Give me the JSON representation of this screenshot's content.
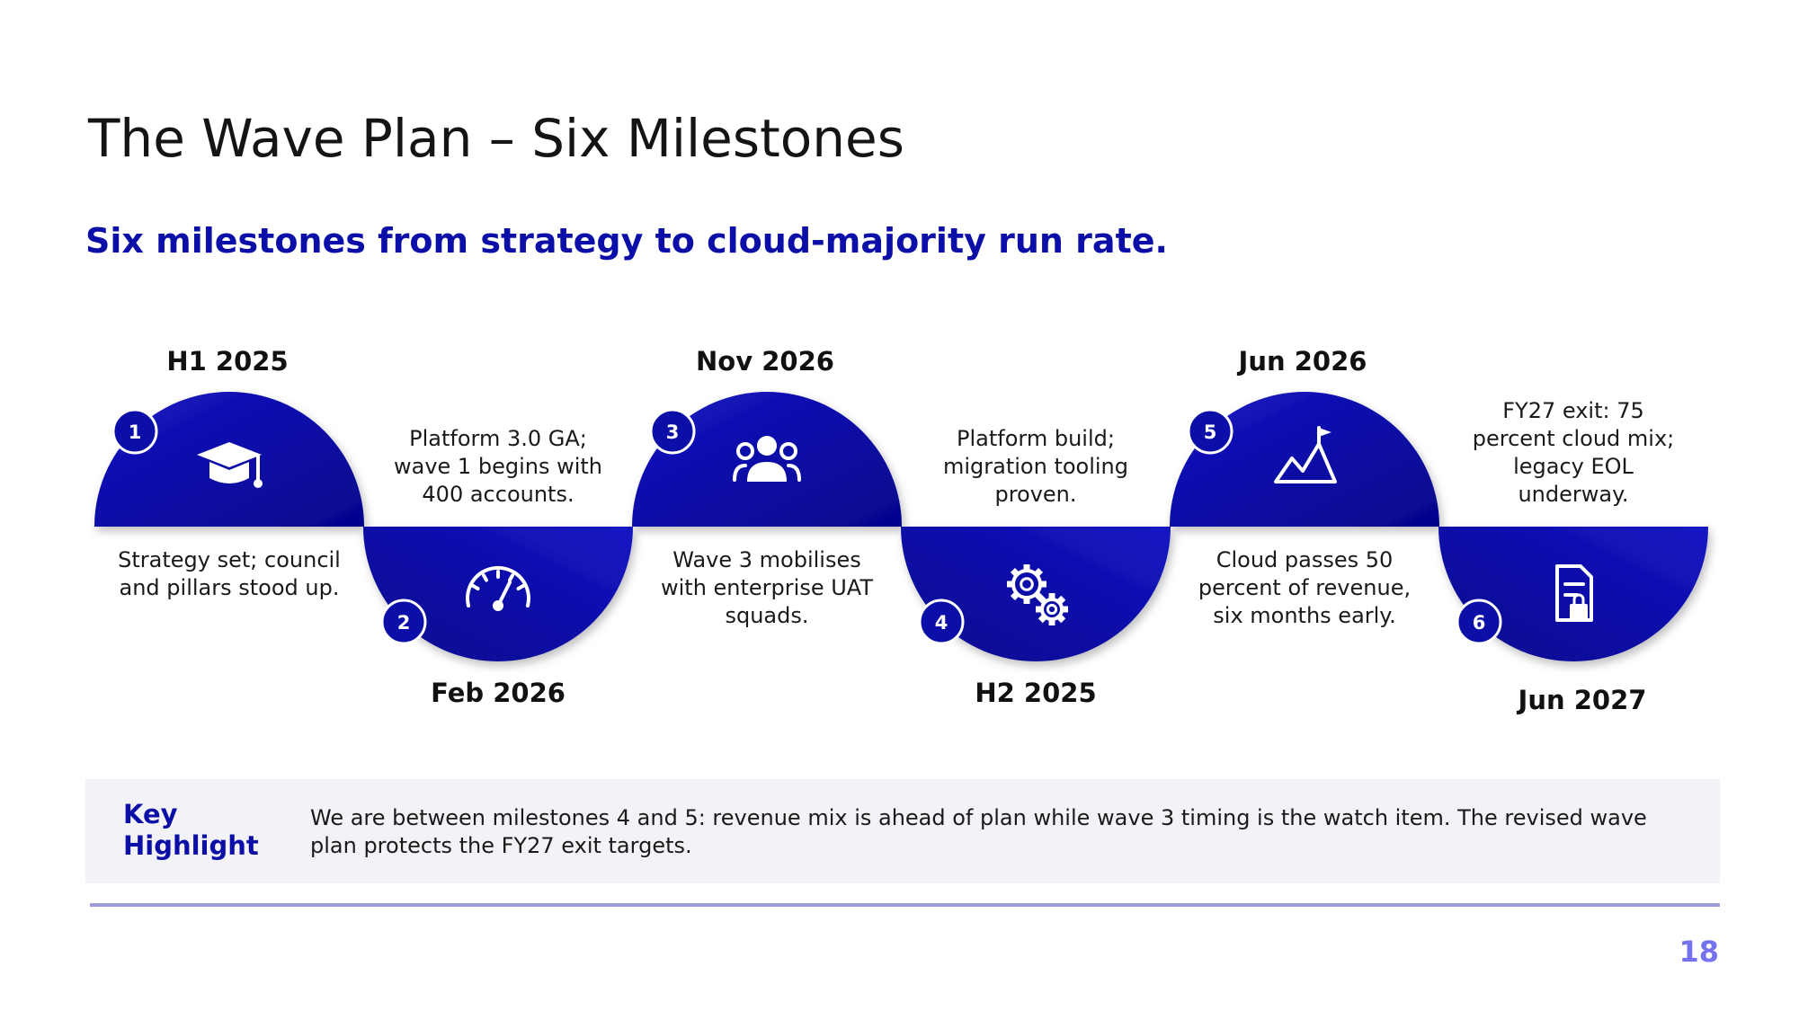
{
  "slide": {
    "title": "The Wave Plan – Six Milestones",
    "subtitle": "Six milestones from strategy to cloud-majority run rate.",
    "page_number": "18"
  },
  "colors": {
    "accent": "#0b0fa8",
    "accent_dark": "#05058c",
    "accent_light": "#1616c4",
    "highlight_bg": "#f3f2f6",
    "rule": "#9f9bd6",
    "page_number": "#7472ee"
  },
  "milestones": [
    {
      "number": "1",
      "date": "H1 2025",
      "caption": [
        "Strategy set; council",
        "and pillars stood up."
      ],
      "icon": "graduation-cap-icon",
      "orientation": "up"
    },
    {
      "number": "2",
      "date": "Feb 2026",
      "caption": [
        "Platform 3.0 GA;",
        "wave 1 begins with",
        "400 accounts."
      ],
      "icon": "speedometer-icon",
      "orientation": "down"
    },
    {
      "number": "3",
      "date": "Nov 2026",
      "caption": [
        "Wave 3 mobilises",
        "with enterprise UAT",
        "squads."
      ],
      "icon": "team-icon",
      "orientation": "up"
    },
    {
      "number": "4",
      "date": "H2 2025",
      "caption": [
        "Platform build;",
        "migration tooling",
        "proven."
      ],
      "icon": "gears-icon",
      "orientation": "down"
    },
    {
      "number": "5",
      "date": "Jun 2026",
      "caption": [
        "Cloud passes 50",
        "percent of revenue,",
        "six months early."
      ],
      "icon": "mountain-flag-icon",
      "orientation": "up"
    },
    {
      "number": "6",
      "date": "Jun 2027",
      "caption": [
        "FY27 exit: 75",
        "percent cloud mix;",
        "legacy EOL",
        "underway."
      ],
      "icon": "document-lock-icon",
      "orientation": "down"
    }
  ],
  "highlight": {
    "label_line1": "Key",
    "label_line2": "Highlight",
    "text": "We are between milestones 4 and 5: revenue mix is ahead of plan while wave 3 timing is the watch item. The revised wave plan protects the FY27 exit targets."
  }
}
